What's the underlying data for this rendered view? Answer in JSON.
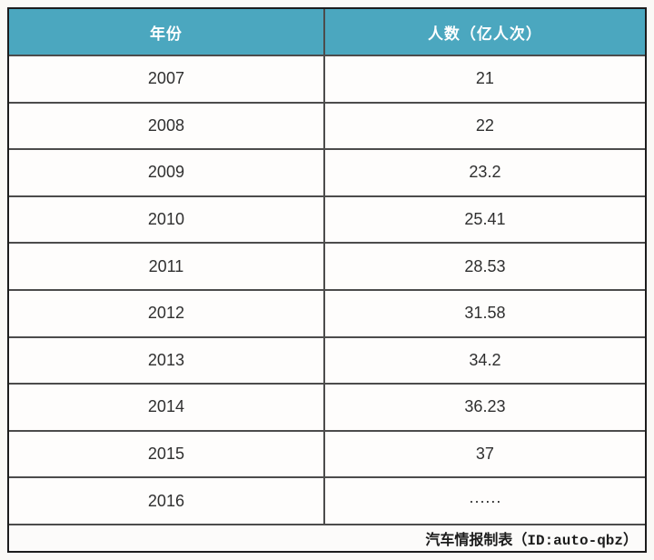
{
  "chart_data": {
    "type": "table",
    "title": "",
    "columns": [
      "年份",
      "人数（亿人次）"
    ],
    "categories": [
      "2007",
      "2008",
      "2009",
      "2010",
      "2011",
      "2012",
      "2013",
      "2014",
      "2015",
      "2016"
    ],
    "values": [
      21,
      22,
      23.2,
      25.41,
      28.53,
      31.58,
      34.2,
      36.23,
      37,
      null
    ],
    "value_2016_display": "······",
    "source_note": "汽车情报制表（ID:auto-qbz）"
  },
  "table": {
    "header": {
      "year": "年份",
      "count": "人数（亿人次）"
    },
    "rows": [
      {
        "year": "2007",
        "value": "21"
      },
      {
        "year": "2008",
        "value": "22"
      },
      {
        "year": "2009",
        "value": "23.2"
      },
      {
        "year": "2010",
        "value": "25.41"
      },
      {
        "year": "2011",
        "value": "28.53"
      },
      {
        "year": "2012",
        "value": "31.58"
      },
      {
        "year": "2013",
        "value": "34.2"
      },
      {
        "year": "2014",
        "value": "36.23"
      },
      {
        "year": "2015",
        "value": "37"
      },
      {
        "year": "2016",
        "value": "······"
      }
    ],
    "footer": "汽车情报制表（ID:auto-qbz）"
  },
  "colors": {
    "header_bg": "#4ba7bf",
    "header_text": "#ffffff",
    "outer_border": "#1c1c1c",
    "grid_line": "#4c4c4c",
    "cell_text": "#2f2f2f",
    "page_bg": "#faf9f6"
  }
}
